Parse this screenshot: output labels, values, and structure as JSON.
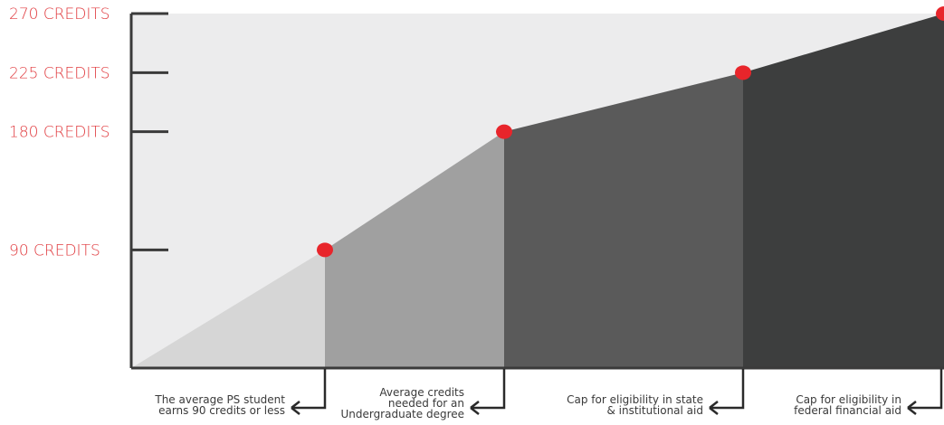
{
  "chart_data": {
    "type": "area",
    "title": "",
    "xlabel": "",
    "ylabel": "",
    "y_unit": "credits",
    "ylim": [
      0,
      270
    ],
    "y_ticks": [
      {
        "value": 90,
        "label": "90 CREDITS"
      },
      {
        "value": 180,
        "label": "180 CREDITS"
      },
      {
        "value": 225,
        "label": "225 CREDITS"
      },
      {
        "value": 270,
        "label": "270 CREDITS"
      }
    ],
    "points": [
      {
        "x": 0,
        "y": 0
      },
      {
        "x": 1,
        "y": 90
      },
      {
        "x": 2,
        "y": 180
      },
      {
        "x": 3,
        "y": 225
      },
      {
        "x": 4,
        "y": 270
      }
    ],
    "segments": [
      {
        "from": 0,
        "to": 1,
        "color": "#d6d6d6"
      },
      {
        "from": 1,
        "to": 2,
        "color": "#a0a0a0"
      },
      {
        "from": 2,
        "to": 3,
        "color": "#5a5a5a"
      },
      {
        "from": 3,
        "to": 4,
        "color": "#3d3e3e"
      }
    ],
    "annotations": [
      {
        "x": 1,
        "lines": [
          "The average PS student",
          "earns 90 credits or less"
        ]
      },
      {
        "x": 2,
        "lines": [
          "Average credits",
          "needed for an",
          "Undergraduate degree"
        ]
      },
      {
        "x": 3,
        "lines": [
          "Cap for eligibility in state",
          "& institutional aid"
        ]
      },
      {
        "x": 4,
        "lines": [
          "Cap for eligibility in",
          "federal financial aid"
        ]
      }
    ],
    "grid": false,
    "legend": "none",
    "colors": {
      "background_area": "#ececed",
      "marker": "#e8252b",
      "tick_label": "#e03a3e",
      "axis": "#3a3a3a"
    }
  }
}
